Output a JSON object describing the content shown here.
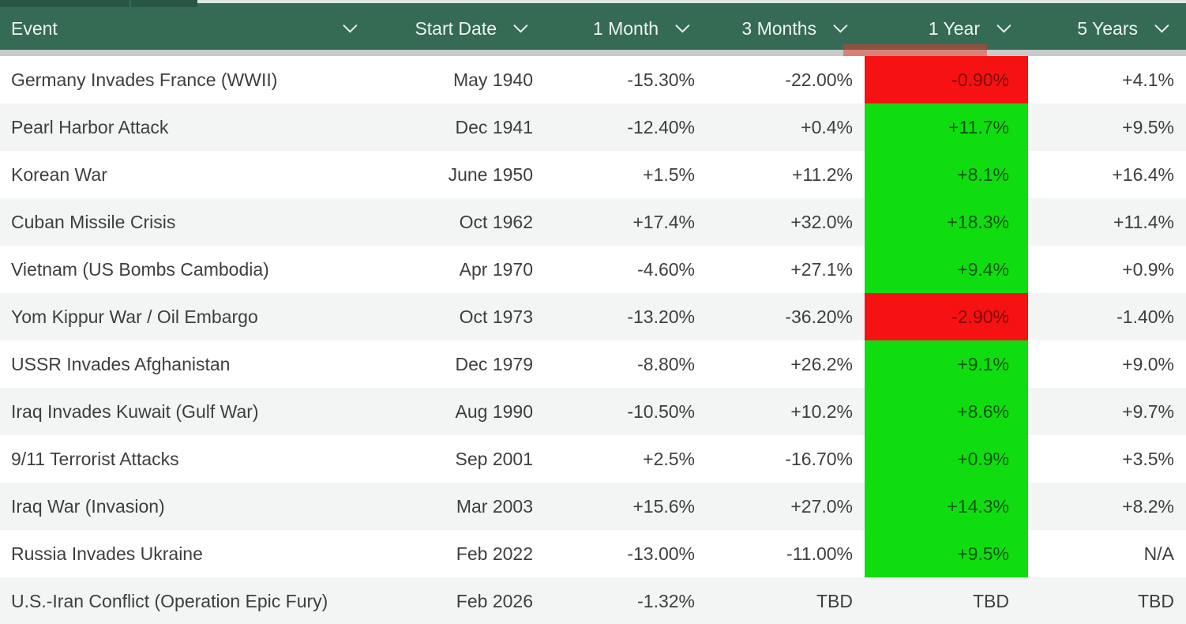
{
  "table": {
    "columns": [
      {
        "label": "Event"
      },
      {
        "label": "Start Date"
      },
      {
        "label": "1 Month"
      },
      {
        "label": "3 Months"
      },
      {
        "label": "1 Year"
      },
      {
        "label": "5 Years"
      }
    ],
    "rows": [
      {
        "event": "Germany Invades France (WWII)",
        "start_date": "May 1940",
        "m1": "-15.30%",
        "m3": "-22.00%",
        "y1": "-0.90%",
        "y1_status": "red",
        "y5": "+4.1%"
      },
      {
        "event": "Pearl Harbor Attack",
        "start_date": "Dec 1941",
        "m1": "-12.40%",
        "m3": "+0.4%",
        "y1": "+11.7%",
        "y1_status": "green",
        "y5": "+9.5%"
      },
      {
        "event": "Korean War",
        "start_date": "June 1950",
        "m1": "+1.5%",
        "m3": "+11.2%",
        "y1": "+8.1%",
        "y1_status": "green",
        "y5": "+16.4%"
      },
      {
        "event": "Cuban Missile Crisis",
        "start_date": "Oct 1962",
        "m1": "+17.4%",
        "m3": "+32.0%",
        "y1": "+18.3%",
        "y1_status": "green",
        "y5": "+11.4%"
      },
      {
        "event": "Vietnam (US Bombs Cambodia)",
        "start_date": "Apr 1970",
        "m1": "-4.60%",
        "m3": "+27.1%",
        "y1": "+9.4%",
        "y1_status": "green",
        "y5": "+0.9%"
      },
      {
        "event": "Yom Kippur War / Oil Embargo",
        "start_date": "Oct 1973",
        "m1": "-13.20%",
        "m3": "-36.20%",
        "y1": "-2.90%",
        "y1_status": "red",
        "y5": "-1.40%"
      },
      {
        "event": "USSR Invades Afghanistan",
        "start_date": "Dec 1979",
        "m1": "-8.80%",
        "m3": "+26.2%",
        "y1": "+9.1%",
        "y1_status": "green",
        "y5": "+9.0%"
      },
      {
        "event": "Iraq Invades Kuwait (Gulf War)",
        "start_date": "Aug 1990",
        "m1": "-10.50%",
        "m3": "+10.2%",
        "y1": "+8.6%",
        "y1_status": "green",
        "y5": "+9.7%"
      },
      {
        "event": "9/11 Terrorist Attacks",
        "start_date": "Sep 2001",
        "m1": "+2.5%",
        "m3": "-16.70%",
        "y1": "+0.9%",
        "y1_status": "green",
        "y5": "+3.5%"
      },
      {
        "event": "Iraq War (Invasion)",
        "start_date": "Mar 2003",
        "m1": "+15.6%",
        "m3": "+27.0%",
        "y1": "+14.3%",
        "y1_status": "green",
        "y5": "+8.2%"
      },
      {
        "event": "Russia Invades Ukraine",
        "start_date": "Feb 2022",
        "m1": "-13.00%",
        "m3": "-11.00%",
        "y1": "+9.5%",
        "y1_status": "green",
        "y5": "N/A"
      },
      {
        "event": "U.S.-Iran Conflict (Operation Epic Fury)",
        "start_date": "Feb 2026",
        "m1": "-1.32%",
        "m3": "TBD",
        "y1": "TBD",
        "y1_status": "none",
        "y5": "TBD"
      }
    ]
  },
  "colors": {
    "header_bg": "#356a54",
    "negative_cell": "#f61212",
    "positive_cell": "#10dd10",
    "row_stripe": "#f2f5f4",
    "separator": "#c9cbca"
  }
}
